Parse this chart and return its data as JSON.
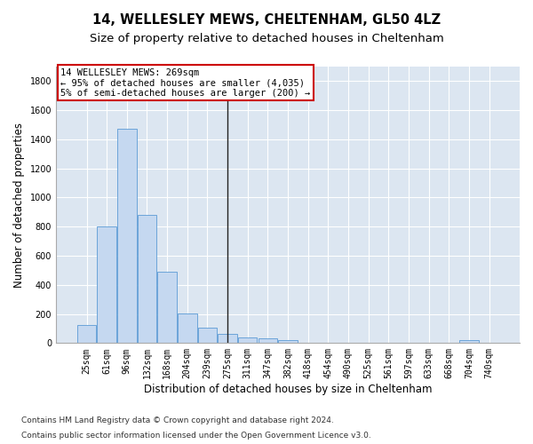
{
  "title1": "14, WELLESLEY MEWS, CHELTENHAM, GL50 4LZ",
  "title2": "Size of property relative to detached houses in Cheltenham",
  "xlabel": "Distribution of detached houses by size in Cheltenham",
  "ylabel": "Number of detached properties",
  "categories": [
    "25sqm",
    "61sqm",
    "96sqm",
    "132sqm",
    "168sqm",
    "204sqm",
    "239sqm",
    "275sqm",
    "311sqm",
    "347sqm",
    "382sqm",
    "418sqm",
    "454sqm",
    "490sqm",
    "525sqm",
    "561sqm",
    "597sqm",
    "633sqm",
    "668sqm",
    "704sqm",
    "740sqm"
  ],
  "values": [
    125,
    800,
    1475,
    880,
    490,
    205,
    105,
    65,
    40,
    35,
    20,
    0,
    0,
    0,
    0,
    0,
    0,
    0,
    0,
    20,
    0
  ],
  "bar_color": "#c5d8f0",
  "bar_edgecolor": "#5b9bd5",
  "background_color": "#dce6f1",
  "vline_x_index": 7,
  "annotation_text_line1": "14 WELLESLEY MEWS: 269sqm",
  "annotation_text_line2": "← 95% of detached houses are smaller (4,035)",
  "annotation_text_line3": "5% of semi-detached houses are larger (200) →",
  "annotation_box_edgecolor": "#cc0000",
  "ylim": [
    0,
    1900
  ],
  "yticks": [
    0,
    200,
    400,
    600,
    800,
    1000,
    1200,
    1400,
    1600,
    1800
  ],
  "footnote_line1": "Contains HM Land Registry data © Crown copyright and database right 2024.",
  "footnote_line2": "Contains public sector information licensed under the Open Government Licence v3.0.",
  "grid_color": "#ffffff",
  "title1_fontsize": 10.5,
  "title2_fontsize": 9.5,
  "xlabel_fontsize": 8.5,
  "ylabel_fontsize": 8.5,
  "tick_fontsize": 7,
  "annotation_fontsize": 7.5,
  "footnote_fontsize": 6.5
}
